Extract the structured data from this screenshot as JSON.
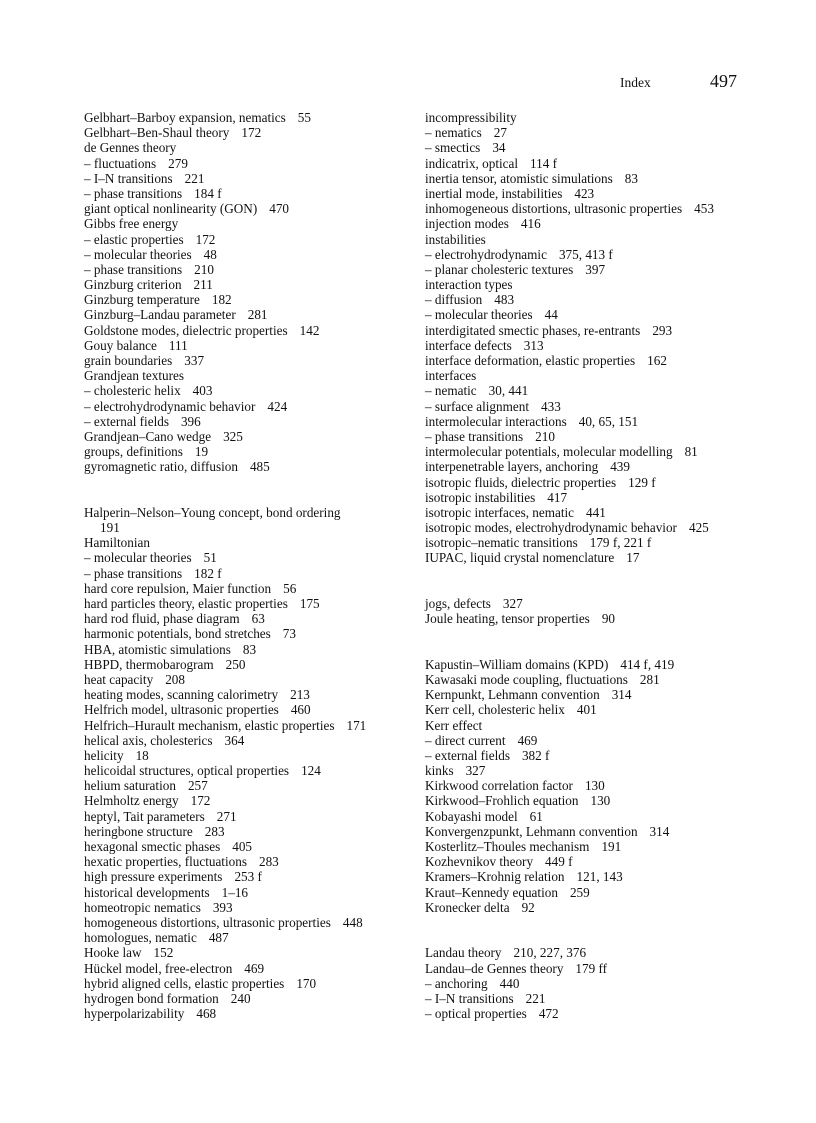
{
  "header": {
    "section": "Index",
    "page_number": "497"
  },
  "left_column": [
    {
      "text": "Gelbhart–Barboy expansion, nematics",
      "pages": "55"
    },
    {
      "text": "Gelbhart–Ben-Shaul theory",
      "pages": "172"
    },
    {
      "text": "de Gennes theory",
      "pages": ""
    },
    {
      "text": "– fluctuations",
      "pages": "279"
    },
    {
      "text": "– I–N transitions",
      "pages": "221"
    },
    {
      "text": "– phase transitions",
      "pages": "184 f"
    },
    {
      "text": "giant optical nonlinearity (GON)",
      "pages": "470"
    },
    {
      "text": "Gibbs free energy",
      "pages": ""
    },
    {
      "text": "– elastic properties",
      "pages": "172"
    },
    {
      "text": "– molecular theories",
      "pages": "48"
    },
    {
      "text": "– phase transitions",
      "pages": "210"
    },
    {
      "text": "Ginzburg criterion",
      "pages": "211"
    },
    {
      "text": "Ginzburg temperature",
      "pages": "182"
    },
    {
      "text": "Ginzburg–Landau parameter",
      "pages": "281"
    },
    {
      "text": "Goldstone modes, dielectric properties",
      "pages": "142"
    },
    {
      "text": "Gouy balance",
      "pages": "111"
    },
    {
      "text": "grain boundaries",
      "pages": "337"
    },
    {
      "text": "Grandjean textures",
      "pages": ""
    },
    {
      "text": "– cholesteric helix",
      "pages": "403"
    },
    {
      "text": "– electrohydrodynamic behavior",
      "pages": "424"
    },
    {
      "text": "– external fields",
      "pages": "396"
    },
    {
      "text": "Grandjean–Cano wedge",
      "pages": "325"
    },
    {
      "text": "groups, definitions",
      "pages": "19"
    },
    {
      "text": "gyromagnetic ratio, diffusion",
      "pages": "485"
    },
    {
      "text": "",
      "pages": ""
    },
    {
      "text": "",
      "pages": ""
    },
    {
      "text": "Halperin–Nelson–Young concept, bond ordering",
      "pages": ""
    },
    {
      "text": "",
      "pages": "191",
      "cont": true
    },
    {
      "text": "Hamiltonian",
      "pages": ""
    },
    {
      "text": "– molecular theories",
      "pages": "51"
    },
    {
      "text": "– phase transitions",
      "pages": "182 f"
    },
    {
      "text": "hard core repulsion, Maier function",
      "pages": "56"
    },
    {
      "text": "hard particles theory, elastic properties",
      "pages": "175"
    },
    {
      "text": "hard rod fluid, phase diagram",
      "pages": "63"
    },
    {
      "text": "harmonic potentials, bond stretches",
      "pages": "73"
    },
    {
      "text": "HBA, atomistic simulations",
      "pages": "83"
    },
    {
      "text": "HBPD, thermobarogram",
      "pages": "250"
    },
    {
      "text": "heat capacity",
      "pages": "208"
    },
    {
      "text": "heating modes, scanning calorimetry",
      "pages": "213"
    },
    {
      "text": "Helfrich model, ultrasonic properties",
      "pages": "460"
    },
    {
      "text": "Helfrich–Hurault mechanism, elastic properties",
      "pages": "171"
    },
    {
      "text": "helical axis, cholesterics",
      "pages": "364"
    },
    {
      "text": "helicity",
      "pages": "18"
    },
    {
      "text": "helicoidal structures, optical properties",
      "pages": "124"
    },
    {
      "text": "helium saturation",
      "pages": "257"
    },
    {
      "text": "Helmholtz energy",
      "pages": "172"
    },
    {
      "text": "heptyl, Tait parameters",
      "pages": "271"
    },
    {
      "text": "heringbone structure",
      "pages": "283"
    },
    {
      "text": "hexagonal smectic phases",
      "pages": "405"
    },
    {
      "text": "hexatic properties, fluctuations",
      "pages": "283"
    },
    {
      "text": "high pressure experiments",
      "pages": "253 f"
    },
    {
      "text": "historical developments",
      "pages": "1–16"
    },
    {
      "text": "homeotropic nematics",
      "pages": "393"
    },
    {
      "text": "homogeneous distortions, ultrasonic properties",
      "pages": "448"
    },
    {
      "text": "homologues, nematic",
      "pages": "487"
    },
    {
      "text": "Hooke law",
      "pages": "152"
    },
    {
      "text": "Hückel model, free-electron",
      "pages": "469"
    },
    {
      "text": "hybrid aligned cells, elastic properties",
      "pages": "170"
    },
    {
      "text": "hydrogen bond formation",
      "pages": "240"
    },
    {
      "text": "hyperpolarizability",
      "pages": "468"
    }
  ],
  "right_column": [
    {
      "text": "incompressibility",
      "pages": ""
    },
    {
      "text": "– nematics",
      "pages": "27"
    },
    {
      "text": "– smectics",
      "pages": "34"
    },
    {
      "text": "indicatrix, optical",
      "pages": "114 f"
    },
    {
      "text": "inertia tensor, atomistic simulations",
      "pages": "83"
    },
    {
      "text": "inertial mode, instabilities",
      "pages": "423"
    },
    {
      "text": "inhomogeneous distortions, ultrasonic properties",
      "pages": "453"
    },
    {
      "text": "injection modes",
      "pages": "416"
    },
    {
      "text": "instabilities",
      "pages": ""
    },
    {
      "text": "– electrohydrodynamic",
      "pages": "375, 413 f"
    },
    {
      "text": "– planar cholesteric textures",
      "pages": "397"
    },
    {
      "text": "interaction types",
      "pages": ""
    },
    {
      "text": "– diffusion",
      "pages": "483"
    },
    {
      "text": "– molecular theories",
      "pages": "44"
    },
    {
      "text": "interdigitated smectic phases, re-entrants",
      "pages": "293"
    },
    {
      "text": "interface defects",
      "pages": "313"
    },
    {
      "text": "interface deformation, elastic properties",
      "pages": "162"
    },
    {
      "text": "interfaces",
      "pages": ""
    },
    {
      "text": "– nematic",
      "pages": "30, 441"
    },
    {
      "text": "– surface alignment",
      "pages": "433"
    },
    {
      "text": "intermolecular interactions",
      "pages": "40, 65, 151"
    },
    {
      "text": "– phase transitions",
      "pages": "210"
    },
    {
      "text": "intermolecular potentials, molecular modelling",
      "pages": "81"
    },
    {
      "text": "interpenetrable layers, anchoring",
      "pages": "439"
    },
    {
      "text": "isotropic fluids, dielectric properties",
      "pages": "129 f"
    },
    {
      "text": "isotropic instabilities",
      "pages": "417"
    },
    {
      "text": "isotropic interfaces, nematic",
      "pages": "441"
    },
    {
      "text": "isotropic modes, electrohydrodynamic behavior",
      "pages": "425"
    },
    {
      "text": "isotropic–nematic transitions",
      "pages": "179 f, 221 f"
    },
    {
      "text": "IUPAC, liquid crystal nomenclature",
      "pages": "17"
    },
    {
      "text": "",
      "pages": ""
    },
    {
      "text": "",
      "pages": ""
    },
    {
      "text": "jogs, defects",
      "pages": "327"
    },
    {
      "text": "Joule heating, tensor properties",
      "pages": "90"
    },
    {
      "text": "",
      "pages": ""
    },
    {
      "text": "",
      "pages": ""
    },
    {
      "text": "Kapustin–William domains (KPD)",
      "pages": "414 f, 419"
    },
    {
      "text": "Kawasaki mode coupling, fluctuations",
      "pages": "281"
    },
    {
      "text": "Kernpunkt, Lehmann convention",
      "pages": "314"
    },
    {
      "text": "Kerr cell, cholesteric helix",
      "pages": "401"
    },
    {
      "text": "Kerr effect",
      "pages": ""
    },
    {
      "text": "– direct current",
      "pages": "469"
    },
    {
      "text": "– external fields",
      "pages": "382 f"
    },
    {
      "text": "kinks",
      "pages": "327"
    },
    {
      "text": "Kirkwood correlation factor",
      "pages": "130"
    },
    {
      "text": "Kirkwood–Frohlich equation",
      "pages": "130"
    },
    {
      "text": "Kobayashi model",
      "pages": "61"
    },
    {
      "text": "Konvergenzpunkt, Lehmann convention",
      "pages": "314"
    },
    {
      "text": "Kosterlitz–Thoules mechanism",
      "pages": "191"
    },
    {
      "text": "Kozhevnikov theory",
      "pages": "449 f"
    },
    {
      "text": "Kramers–Krohnig relation",
      "pages": "121, 143"
    },
    {
      "text": "Kraut–Kennedy equation",
      "pages": "259"
    },
    {
      "text": "Kronecker delta",
      "pages": "92"
    },
    {
      "text": "",
      "pages": ""
    },
    {
      "text": "",
      "pages": ""
    },
    {
      "text": "Landau theory",
      "pages": "210, 227, 376"
    },
    {
      "text": "Landau–de Gennes theory",
      "pages": "179 ff"
    },
    {
      "text": "– anchoring",
      "pages": "440"
    },
    {
      "text": "– I–N transitions",
      "pages": "221"
    },
    {
      "text": "– optical properties",
      "pages": "472"
    }
  ]
}
